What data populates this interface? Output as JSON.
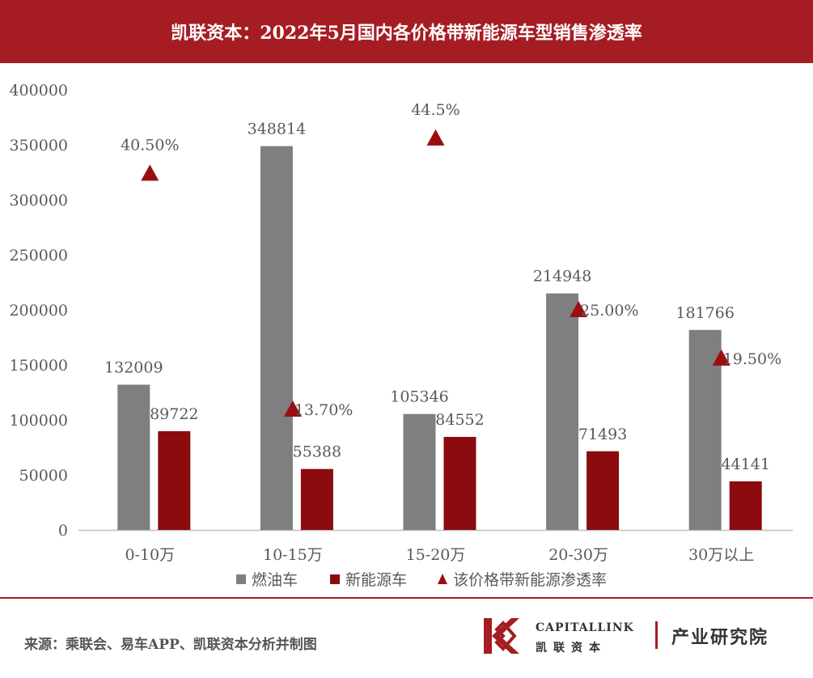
{
  "header": {
    "title": "凯联资本：2022年5月国内各价格带新能源车型销售渗透率"
  },
  "footer": {
    "source": "来源：乘联会、易车APP、凯联资本分析并制图"
  },
  "brand": {
    "name_en": "CAPITALLINK",
    "name_cn": "凯联资本",
    "dept": "产业研究院"
  },
  "chart_data": {
    "type": "bar",
    "categories": [
      "0-10万",
      "10-15万",
      "15-20万",
      "20-30万",
      "30万以上"
    ],
    "series": [
      {
        "name": "燃油车",
        "type": "bar",
        "color": "#7f7f7f",
        "values": [
          132009,
          348814,
          105346,
          214948,
          181766
        ],
        "labels": [
          "132009",
          "348814",
          "105346",
          "214948",
          "181766"
        ]
      },
      {
        "name": "新能源车",
        "type": "bar",
        "color": "#8b0b0e",
        "values": [
          89722,
          55388,
          84552,
          71493,
          44141
        ],
        "labels": [
          "89722",
          "55388",
          "84552",
          "71493",
          "44141"
        ]
      },
      {
        "name": "该价格带新能源渗透率",
        "type": "scatter",
        "marker": "triangle",
        "color": "#9b0d12",
        "values": [
          0.405,
          0.137,
          0.445,
          0.25,
          0.195
        ],
        "labels": [
          "40.50%",
          "13.70%",
          "44.5%",
          "25.00%",
          "19.50%"
        ]
      }
    ],
    "yticks": [
      "0",
      "50000",
      "100000",
      "150000",
      "200000",
      "250000",
      "300000",
      "350000",
      "400000"
    ],
    "ylim": [
      0,
      400000
    ],
    "y2lim": [
      0,
      0.5
    ],
    "grid": false,
    "legend": "bottom"
  }
}
